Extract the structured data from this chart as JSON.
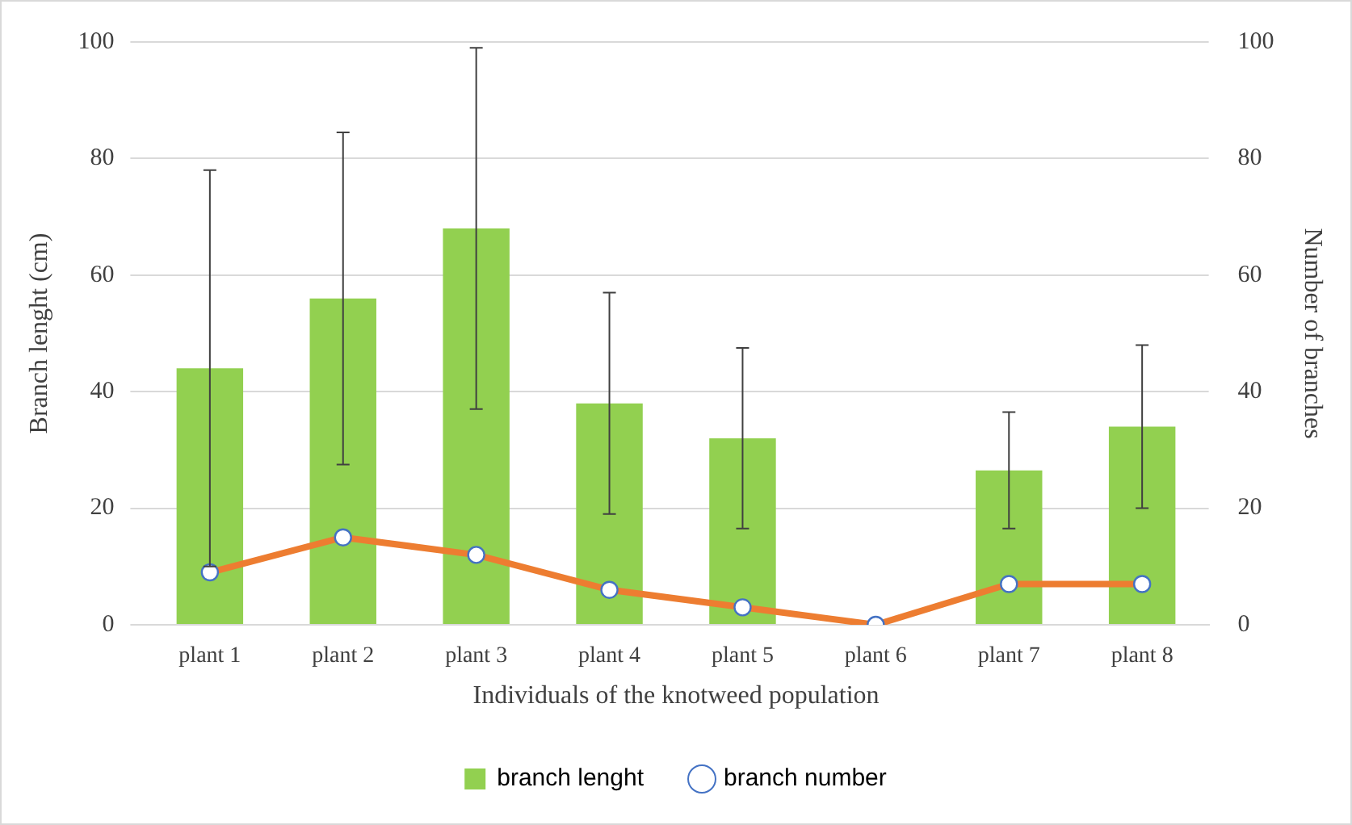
{
  "chart_data": {
    "type": "bar",
    "xlabel": "Individuals of the knotweed population",
    "ylabel": "Branch lenght (cm)",
    "y2label": "Number of branches",
    "categories": [
      "plant 1",
      "plant 2",
      "plant 3",
      "plant 4",
      "plant 5",
      "plant 6",
      "plant 7",
      "plant 8"
    ],
    "series": [
      {
        "name": "branch lenght",
        "color": "#92d050",
        "values": [
          44,
          56,
          68,
          38,
          32,
          0,
          26.5,
          34
        ],
        "errors": [
          34,
          28.5,
          31,
          19,
          15.5,
          null,
          10,
          14
        ]
      },
      {
        "name": "branch number",
        "type": "line",
        "axis": "y2",
        "color": "#ed7d31",
        "marker": "circle",
        "values": [
          9,
          15,
          12,
          6,
          3,
          0,
          7,
          7
        ]
      }
    ],
    "ylim": [
      0,
      100
    ],
    "yticks": [
      0,
      20,
      40,
      60,
      80,
      100
    ],
    "y2lim": [
      0,
      100
    ],
    "y2ticks": [
      0,
      20,
      40,
      60,
      80,
      100
    ],
    "grid": "y",
    "legend": "bottom"
  }
}
